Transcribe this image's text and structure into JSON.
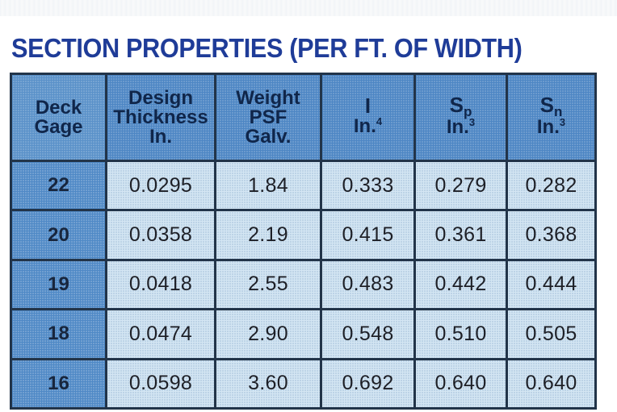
{
  "title": "SECTION PROPERTIES (PER FT. OF WIDTH)",
  "headers": {
    "deck_gage": {
      "line1": "Deck",
      "line2": "Gage"
    },
    "design_thickness": {
      "line1": "Design",
      "line2": "Thickness",
      "line3": "In."
    },
    "weight": {
      "line1": "Weight",
      "line2": "PSF",
      "line3": "Galv."
    },
    "moment_of_inertia": {
      "symbol": "I",
      "unit": "In.",
      "unit_exp": "4"
    },
    "sp": {
      "symbol": "S",
      "subscript": "p",
      "unit": "In.",
      "unit_exp": "3"
    },
    "sn": {
      "symbol": "S",
      "subscript": "n",
      "unit": "In.",
      "unit_exp": "3"
    }
  },
  "rows": [
    {
      "gage": "22",
      "thickness": "0.0295",
      "weight": "1.84",
      "i": "0.333",
      "sp": "0.279",
      "sn": "0.282"
    },
    {
      "gage": "20",
      "thickness": "0.0358",
      "weight": "2.19",
      "i": "0.415",
      "sp": "0.361",
      "sn": "0.368"
    },
    {
      "gage": "19",
      "thickness": "0.0418",
      "weight": "2.55",
      "i": "0.483",
      "sp": "0.442",
      "sn": "0.444"
    },
    {
      "gage": "18",
      "thickness": "0.0474",
      "weight": "2.90",
      "i": "0.548",
      "sp": "0.510",
      "sn": "0.505"
    },
    {
      "gage": "16",
      "thickness": "0.0598",
      "weight": "3.60",
      "i": "0.692",
      "sp": "0.640",
      "sn": "0.640"
    }
  ],
  "colors": {
    "title": "#1f3c98",
    "header_fill": "#4d86c4",
    "gage_fill": "#4f89c6",
    "cell_fill": "#d4e6f3",
    "grid_lines": "#223449"
  }
}
